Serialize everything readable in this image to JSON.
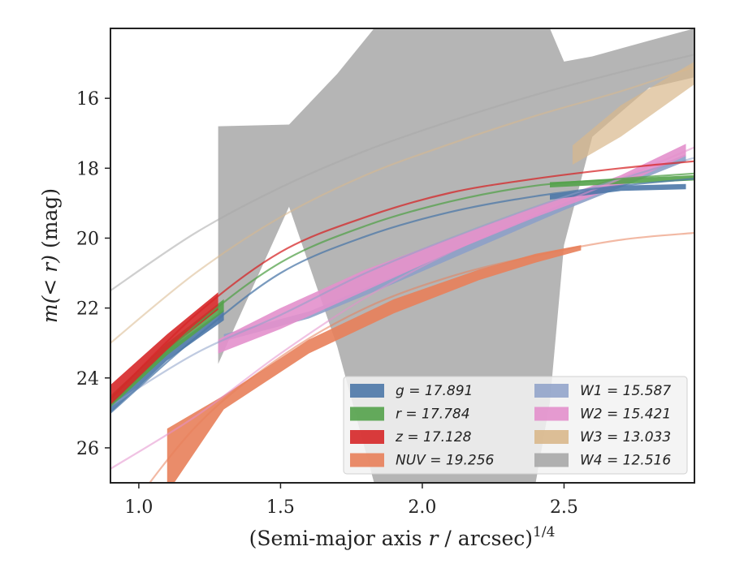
{
  "chart_data": {
    "type": "area",
    "xlabel_main": "(Semi-major axis ",
    "xlabel_var": "r",
    "xlabel_tail": " / arcsec)",
    "xlabel_sup": "1/4",
    "ylabel_pre": "m",
    "ylabel_var": "(< r)",
    "ylabel_tail": " (mag)",
    "xlim": [
      0.9,
      2.96
    ],
    "ylim": [
      27.0,
      14.0
    ],
    "y_inverted": true,
    "xticks": [
      {
        "value": 1.0,
        "label": "1.0"
      },
      {
        "value": 1.5,
        "label": "1.5"
      },
      {
        "value": 2.0,
        "label": "2.0"
      },
      {
        "value": 2.5,
        "label": "2.5"
      }
    ],
    "yticks": [
      {
        "value": 16,
        "label": "16"
      },
      {
        "value": 18,
        "label": "18"
      },
      {
        "value": 20,
        "label": "20"
      },
      {
        "value": 22,
        "label": "22"
      },
      {
        "value": 24,
        "label": "24"
      },
      {
        "value": 26,
        "label": "26"
      }
    ],
    "legend_location": "lower-right",
    "series": [
      {
        "id": "g",
        "label_text": "g = 17.891",
        "color": "#4c78a8",
        "model_x": [
          0.9,
          1.2,
          1.5,
          1.8,
          2.1,
          2.4,
          2.7,
          2.96
        ],
        "model_y": [
          25.0,
          22.85,
          21.0,
          19.95,
          19.25,
          18.8,
          18.5,
          18.3
        ],
        "band_x": [
          0.9,
          1.1,
          1.3
        ],
        "band_upper": [
          24.7,
          23.2,
          22.05
        ],
        "band_lower": [
          25.0,
          23.5,
          22.35
        ],
        "band2_x": [
          2.45,
          2.7,
          2.93
        ],
        "band2_upper": [
          18.75,
          18.5,
          18.45
        ],
        "band2_lower": [
          18.9,
          18.65,
          18.6
        ]
      },
      {
        "id": "r",
        "label_text": "r = 17.784",
        "color": "#54a24b",
        "model_x": [
          0.9,
          1.2,
          1.5,
          1.8,
          2.1,
          2.4,
          2.7,
          2.96
        ],
        "model_y": [
          24.8,
          22.5,
          20.7,
          19.65,
          18.95,
          18.5,
          18.3,
          18.15
        ],
        "band_x": [
          0.9,
          1.1,
          1.3
        ],
        "band_upper": [
          24.5,
          23.0,
          21.75
        ],
        "band_lower": [
          24.85,
          23.35,
          22.1
        ],
        "band2_x": [
          2.45,
          2.7,
          2.96
        ],
        "band2_upper": [
          18.4,
          18.3,
          18.2
        ],
        "band2_lower": [
          18.55,
          18.45,
          18.35
        ]
      },
      {
        "id": "z",
        "label_text": "z = 17.128",
        "color": "#d62728",
        "model_x": [
          0.9,
          1.2,
          1.5,
          1.8,
          2.1,
          2.4,
          2.7,
          2.96
        ],
        "model_y": [
          24.6,
          22.2,
          20.4,
          19.4,
          18.7,
          18.3,
          18.0,
          17.8
        ],
        "band_x": [
          0.9,
          1.1,
          1.28
        ],
        "band_upper": [
          24.2,
          22.75,
          21.55
        ],
        "band_lower": [
          24.8,
          23.2,
          22.05
        ]
      },
      {
        "id": "nuv",
        "label_text": "NUV = 19.256",
        "color": "#e8805a",
        "model_x": [
          0.9,
          1.2,
          1.5,
          1.8,
          2.1,
          2.4,
          2.7,
          2.96
        ],
        "model_y": [
          28.5,
          25.4,
          23.4,
          22.0,
          21.1,
          20.5,
          20.05,
          19.85
        ],
        "band_x": [
          1.1,
          1.3,
          1.6,
          1.9,
          2.2,
          2.4,
          2.56
        ],
        "band_upper": [
          25.45,
          24.5,
          22.9,
          21.75,
          20.9,
          20.45,
          20.2
        ],
        "band_lower": [
          27.3,
          24.9,
          23.3,
          22.15,
          21.2,
          20.7,
          20.35
        ]
      },
      {
        "id": "w1",
        "label_text": "W1 = 15.587",
        "color": "#8da0c8",
        "model_x": [
          0.9,
          1.2,
          1.5,
          1.8,
          2.1,
          2.4,
          2.7,
          2.96
        ],
        "model_y": [
          24.8,
          23.3,
          22.2,
          21.0,
          20.0,
          19.1,
          18.3,
          17.7
        ],
        "band_x": [
          1.3,
          1.6,
          1.9,
          2.2,
          2.5,
          2.93
        ],
        "band_upper": [
          22.75,
          22.1,
          21.1,
          20.05,
          19.0,
          17.6
        ],
        "band_lower": [
          22.95,
          22.3,
          21.3,
          20.25,
          19.2,
          17.8
        ]
      },
      {
        "id": "w2",
        "label_text": "W2 = 15.421",
        "color": "#e390cc",
        "model_x": [
          0.9,
          1.2,
          1.5,
          1.8,
          2.1,
          2.4,
          2.7,
          2.96
        ],
        "model_y": [
          26.6,
          25.1,
          23.3,
          21.7,
          20.4,
          19.3,
          18.3,
          17.4
        ],
        "band_x": [
          1.28,
          1.5,
          1.8,
          2.1,
          2.4,
          2.7,
          2.93
        ],
        "band_upper": [
          22.9,
          22.0,
          20.9,
          20.0,
          19.1,
          18.2,
          17.3
        ],
        "band_lower": [
          23.3,
          22.6,
          21.5,
          20.4,
          19.4,
          18.5,
          17.65
        ]
      },
      {
        "id": "w3",
        "label_text": "W3 = 13.033",
        "color": "#d9b88c",
        "model_x": [
          0.9,
          1.2,
          1.5,
          1.8,
          2.1,
          2.4,
          2.7,
          2.96
        ],
        "model_y": [
          23.0,
          21.0,
          19.4,
          18.2,
          17.3,
          16.5,
          15.8,
          15.1
        ],
        "band_x": [
          2.53,
          2.7,
          2.96
        ],
        "band_upper": [
          17.35,
          16.2,
          14.95
        ],
        "band_lower": [
          17.9,
          17.1,
          15.6
        ]
      },
      {
        "id": "w4",
        "label_text": "W4 = 12.516",
        "color": "#a8a8a8",
        "model_x": [
          0.9,
          1.2,
          1.5,
          1.8,
          2.1,
          2.4,
          2.7,
          2.96
        ],
        "model_y": [
          21.5,
          19.85,
          18.55,
          17.5,
          16.65,
          15.9,
          15.25,
          14.75
        ],
        "band_x": [
          1.28,
          1.53,
          1.7,
          1.83,
          1.85,
          2.0,
          2.4,
          2.45,
          2.5,
          2.6,
          2.8,
          2.96
        ],
        "band_upper": [
          16.8,
          16.75,
          15.3,
          14.0,
          14.0,
          14.0,
          14.0,
          14.0,
          14.95,
          14.8,
          14.35,
          14.0
        ],
        "band_lower": [
          23.6,
          19.1,
          23.1,
          27.0,
          27.0,
          27.0,
          27.0,
          24.7,
          20.2,
          17.1,
          15.7,
          15.4
        ]
      }
    ]
  }
}
